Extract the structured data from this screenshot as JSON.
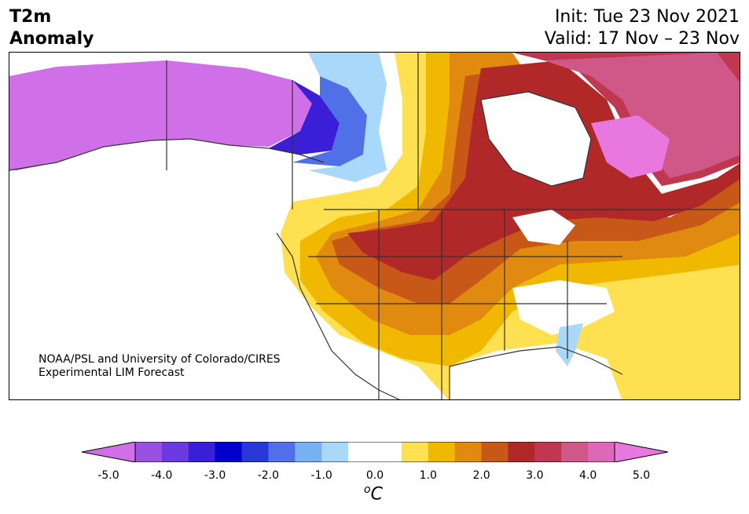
{
  "header": {
    "title_line1": "T2m",
    "title_line2": "Anomaly",
    "init": "Init: Tue 23 Nov 2021",
    "valid": "Valid: 17 Nov – 23 Nov"
  },
  "credit": {
    "line1": "NOAA/PSL and University of Colorado/CIRES",
    "line2": "Experimental LIM Forecast"
  },
  "colorbar": {
    "ticks": [
      "-5.0",
      "-4.0",
      "-3.0",
      "-2.0",
      "-1.0",
      "0.0",
      "1.0",
      "2.0",
      "3.0",
      "4.0",
      "5.0"
    ],
    "unit_super": "o",
    "unit_base": "C",
    "colors": [
      "#d070e8",
      "#9a50e0",
      "#6a3adf",
      "#3a1fd6",
      "#0000cc",
      "#2838d8",
      "#5070e8",
      "#78b0f4",
      "#a8d8fa",
      "#ffffff",
      "#ffffff",
      "#ffe050",
      "#f0b800",
      "#e08a10",
      "#c85818",
      "#b02828",
      "#c03850",
      "#d05888",
      "#dd68b8",
      "#e878e0"
    ]
  },
  "map": {
    "region": "North America",
    "colors": {
      "cold_deep": "#d070e8",
      "blue_dark": "#0000cc",
      "blue_mid": "#5070e8",
      "blue_light": "#a8d8fa",
      "warm_yellow": "#ffe050",
      "warm_gold": "#f0b800",
      "warm_orange": "#e08a10",
      "warm_redorange": "#c85818",
      "warm_red": "#b02828",
      "warm_crimson": "#c03850",
      "warm_pink": "#d05888",
      "warm_magenta": "#e878e0",
      "border": "#333333"
    }
  }
}
